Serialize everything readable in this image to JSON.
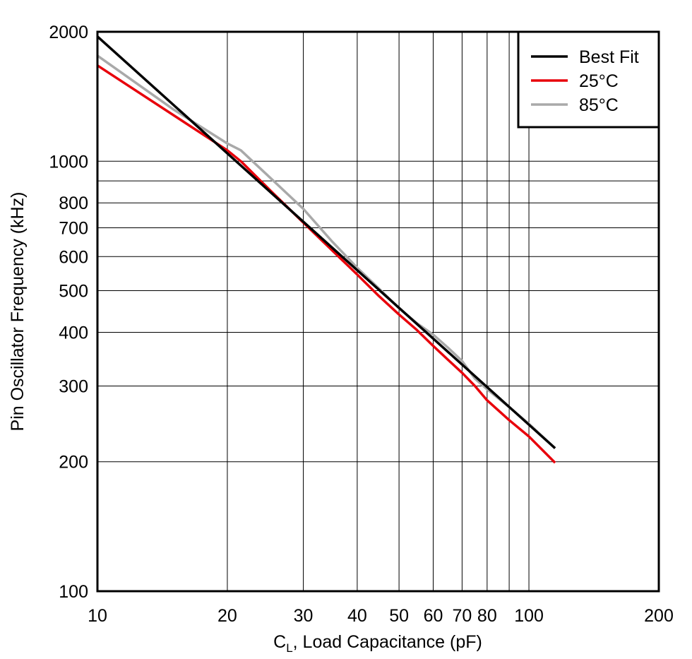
{
  "chart_data": {
    "type": "line",
    "xscale": "log",
    "yscale": "log",
    "xlim": [
      10,
      200
    ],
    "ylim": [
      100,
      2000
    ],
    "grid": true,
    "legend_position": "top-right",
    "xlabel": {
      "main": "C",
      "sub": "L",
      "rest": ", Load Capacitance (pF)"
    },
    "ylabel": "Pin Oscillator Frequency (kHz)",
    "x_grid": [
      20,
      30,
      40,
      50,
      60,
      70,
      80,
      90,
      100
    ],
    "y_grid": [
      200,
      300,
      400,
      500,
      600,
      700,
      800,
      900,
      1000
    ],
    "x_ticks": [
      {
        "value": 10,
        "label": "10"
      },
      {
        "value": 20,
        "label": "20"
      },
      {
        "value": 30,
        "label": "30"
      },
      {
        "value": 40,
        "label": "40"
      },
      {
        "value": 50,
        "label": "50"
      },
      {
        "value": 60,
        "label": "60"
      },
      {
        "value": 70,
        "label": "70"
      },
      {
        "value": 80,
        "label": "80"
      },
      {
        "value": 100,
        "label": "100"
      },
      {
        "value": 200,
        "label": "200"
      }
    ],
    "y_ticks": [
      {
        "value": 100,
        "label": "100"
      },
      {
        "value": 200,
        "label": "200"
      },
      {
        "value": 300,
        "label": "300"
      },
      {
        "value": 400,
        "label": "400"
      },
      {
        "value": 500,
        "label": "500"
      },
      {
        "value": 600,
        "label": "600"
      },
      {
        "value": 700,
        "label": "700"
      },
      {
        "value": 800,
        "label": "800"
      },
      {
        "value": 1000,
        "label": "1000"
      },
      {
        "value": 2000,
        "label": "2000"
      }
    ],
    "series": [
      {
        "name": "Best Fit",
        "color": "#000000",
        "points": [
          [
            10,
            1950
          ],
          [
            115,
            215
          ]
        ]
      },
      {
        "name": "25°C",
        "color": "#e8000b",
        "points": [
          [
            10,
            1670
          ],
          [
            15,
            1280
          ],
          [
            20,
            1060
          ],
          [
            21.5,
            1000
          ],
          [
            25,
            860
          ],
          [
            30,
            720
          ],
          [
            35,
            620
          ],
          [
            40,
            545
          ],
          [
            45,
            485
          ],
          [
            50,
            440
          ],
          [
            55,
            405
          ],
          [
            60,
            372
          ],
          [
            65,
            345
          ],
          [
            70,
            322
          ],
          [
            75,
            300
          ],
          [
            80,
            278
          ],
          [
            90,
            250
          ],
          [
            100,
            229
          ],
          [
            115,
            199
          ]
        ]
      },
      {
        "name": "85°C",
        "color": "#a9a9a9",
        "points": [
          [
            10,
            1760
          ],
          [
            15,
            1320
          ],
          [
            20,
            1100
          ],
          [
            21.5,
            1060
          ],
          [
            25,
            920
          ],
          [
            30,
            775
          ],
          [
            35,
            650
          ],
          [
            40,
            565
          ],
          [
            45,
            505
          ],
          [
            50,
            455
          ],
          [
            55,
            420
          ],
          [
            60,
            395
          ],
          [
            65,
            368
          ],
          [
            70,
            343
          ],
          [
            75,
            312
          ],
          [
            80,
            295
          ],
          [
            90,
            268
          ],
          [
            100,
            245
          ],
          [
            115,
            215
          ]
        ]
      }
    ]
  }
}
